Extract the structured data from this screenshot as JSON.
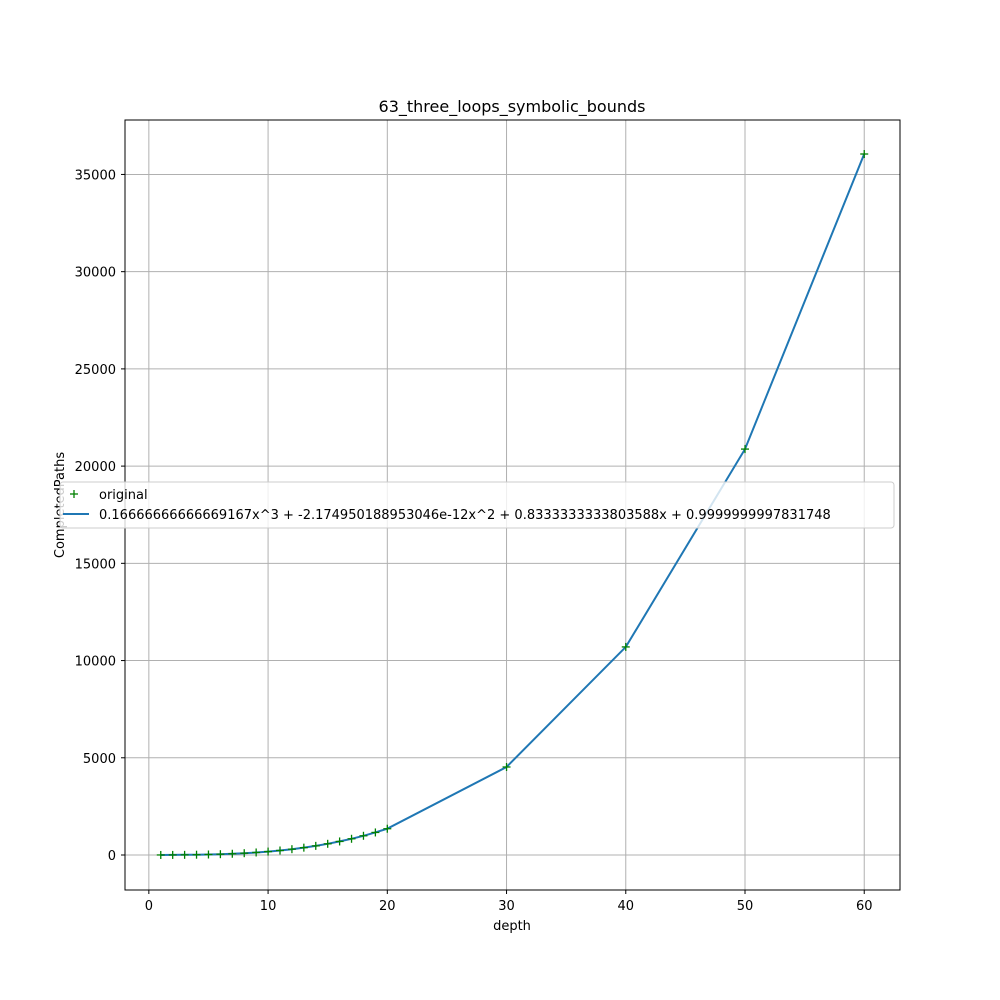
{
  "chart_data": {
    "type": "line",
    "title": "63_three_loops_symbolic_bounds",
    "xlabel": "depth",
    "ylabel": "CompletedPaths",
    "xlim": [
      -2,
      63
    ],
    "ylim": [
      -1800,
      37800
    ],
    "x_ticks": [
      0,
      10,
      20,
      30,
      40,
      50,
      60
    ],
    "y_ticks": [
      0,
      5000,
      10000,
      15000,
      20000,
      25000,
      30000,
      35000
    ],
    "grid": true,
    "legend_position": "center-left",
    "x": [
      1,
      2,
      3,
      4,
      5,
      6,
      7,
      8,
      9,
      10,
      11,
      12,
      13,
      14,
      15,
      16,
      17,
      18,
      19,
      20,
      30,
      40,
      50,
      60
    ],
    "series": [
      {
        "name": "original",
        "style": "markers",
        "marker": "+",
        "color": "#008000",
        "values": [
          2,
          4,
          8,
          15,
          26,
          42,
          64,
          93,
          130,
          176,
          232,
          299,
          378,
          470,
          576,
          697,
          834,
          988,
          1160,
          1351,
          4526,
          10701,
          20876,
          36051
        ]
      },
      {
        "name": "0.16666666666669167x^3 + -2.174950188953046e-12x^2 + 0.8333333333803588x + 0.9999999997831748",
        "style": "line",
        "color": "#1f77b4",
        "values": [
          2,
          4,
          8,
          15,
          26,
          42,
          64,
          93,
          130,
          176,
          232,
          299,
          378,
          470,
          576,
          697,
          834,
          988,
          1160,
          1351,
          4526,
          10701,
          20876,
          36051
        ]
      }
    ]
  }
}
